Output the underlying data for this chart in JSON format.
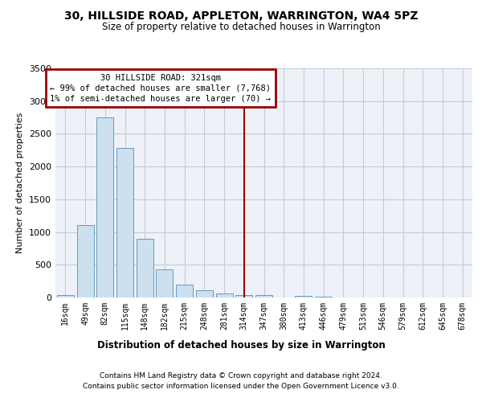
{
  "title": "30, HILLSIDE ROAD, APPLETON, WARRINGTON, WA4 5PZ",
  "subtitle": "Size of property relative to detached houses in Warrington",
  "xlabel": "Distribution of detached houses by size in Warrington",
  "ylabel": "Number of detached properties",
  "bar_labels": [
    "16sqm",
    "49sqm",
    "82sqm",
    "115sqm",
    "148sqm",
    "182sqm",
    "215sqm",
    "248sqm",
    "281sqm",
    "314sqm",
    "347sqm",
    "380sqm",
    "413sqm",
    "446sqm",
    "479sqm",
    "513sqm",
    "546sqm",
    "579sqm",
    "612sqm",
    "645sqm",
    "678sqm"
  ],
  "bar_heights": [
    40,
    1100,
    2750,
    2290,
    900,
    430,
    200,
    110,
    60,
    35,
    40,
    0,
    20,
    10,
    0,
    0,
    0,
    0,
    0,
    0,
    0
  ],
  "bar_color": "#cce0f0",
  "bar_edge_color": "#6699bb",
  "vline_x_index": 9,
  "annotation_line1": "30 HILLSIDE ROAD: 321sqm",
  "annotation_line2": "← 99% of detached houses are smaller (7,768)",
  "annotation_line3": "1% of semi-detached houses are larger (70) →",
  "vline_color": "#990000",
  "box_edge_color": "#990000",
  "ylim": [
    0,
    3500
  ],
  "yticks": [
    0,
    500,
    1000,
    1500,
    2000,
    2500,
    3000,
    3500
  ],
  "grid_color": "#c0ccdb",
  "bg_color": "#eef2f8",
  "footer_line1": "Contains HM Land Registry data © Crown copyright and database right 2024.",
  "footer_line2": "Contains public sector information licensed under the Open Government Licence v3.0."
}
